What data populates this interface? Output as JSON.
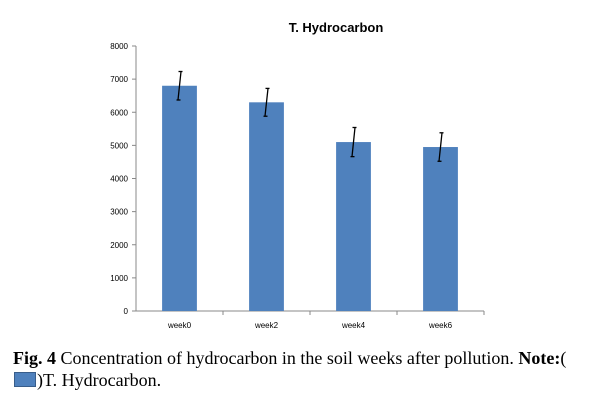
{
  "chart_data": {
    "type": "bar",
    "title": "T. Hydrocarbon",
    "categories": [
      "week0",
      "week2",
      "week4",
      "week6"
    ],
    "series": [
      {
        "values": [
          6800,
          6300,
          5100,
          4950
        ],
        "errors": [
          430,
          420,
          440,
          430
        ]
      }
    ],
    "ylim": [
      0,
      8000
    ],
    "yticks": [
      0,
      1000,
      2000,
      3000,
      4000,
      5000,
      6000,
      7000,
      8000
    ],
    "grid": false,
    "bar_color": "#4f81bd",
    "axis_color": "#888888"
  },
  "caption": {
    "label": "Fig. 4",
    "text": " Concentration of hydrocarbon in the soil weeks after pollution. ",
    "note_label": "Note:",
    "paren_open": "(",
    "note_text": ")T. Hydrocarbon."
  }
}
